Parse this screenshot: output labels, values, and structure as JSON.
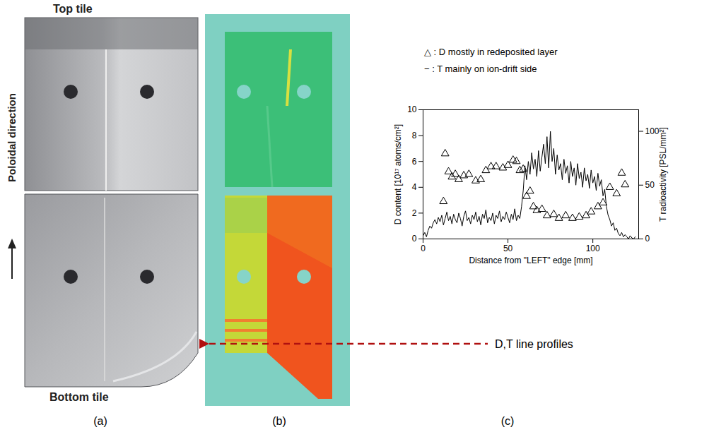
{
  "figure": {
    "panels": {
      "a": {
        "label": "(a)",
        "top_title": "Top tile",
        "bottom_title": "Bottom tile",
        "axis_label": "Poloidal direction"
      },
      "b": {
        "label": "(b)"
      },
      "c": {
        "label": "(c)"
      }
    },
    "annotation": "D,T line profiles"
  },
  "chart_data": {
    "type": "line",
    "xlabel": "Distance from \"LEFT\" edge [mm]",
    "ylabel": "D content [10¹⁷ atoms/cm²]",
    "y2label": "T radioactivity [PSL/mm²]",
    "annotations": [
      "△ : D   mostly in redeposited layer",
      "− : T  mainly on ion-drift side"
    ],
    "xlim": [
      0,
      127
    ],
    "xticks": [
      0,
      50,
      100
    ],
    "ylim": [
      0,
      10
    ],
    "yticks": [
      0,
      2,
      4,
      6,
      8,
      10
    ],
    "y2lim": [
      0,
      120
    ],
    "y2ticks": [
      0,
      50,
      100
    ],
    "grid": false,
    "series": [
      {
        "name": "D",
        "type": "scatter",
        "marker": "triangle",
        "color": "#000000",
        "x": [
          12,
          13,
          15,
          17,
          19,
          21,
          24,
          27,
          31,
          34,
          37,
          40,
          43,
          47,
          50,
          53,
          55,
          57,
          59,
          61,
          63,
          65,
          67,
          70,
          73,
          77,
          80,
          84,
          88,
          92,
          96,
          99,
          103,
          106,
          110,
          114,
          117,
          119
        ],
        "values": [
          2.9,
          6.6,
          5.2,
          4.8,
          5.0,
          4.6,
          4.9,
          5.0,
          4.5,
          4.6,
          5.3,
          5.6,
          5.6,
          5.5,
          5.7,
          6.1,
          6.0,
          5.3,
          5.4,
          3.3,
          3.7,
          2.5,
          2.2,
          2.3,
          1.8,
          1.9,
          1.6,
          1.8,
          1.6,
          1.7,
          1.8,
          2.1,
          2.5,
          2.8,
          4.0,
          3.5,
          5.1,
          4.2
        ]
      },
      {
        "name": "T",
        "type": "line",
        "axis": "y2",
        "color": "#000000",
        "x": [
          0,
          1,
          2,
          3,
          4,
          5,
          6,
          7,
          8,
          9,
          10,
          11,
          12,
          13,
          14,
          15,
          16,
          17,
          18,
          19,
          20,
          21,
          22,
          23,
          24,
          25,
          26,
          27,
          28,
          29,
          30,
          31,
          32,
          33,
          34,
          35,
          36,
          37,
          38,
          39,
          40,
          41,
          42,
          43,
          44,
          45,
          46,
          47,
          48,
          49,
          50,
          51,
          52,
          53,
          54,
          55,
          56,
          57,
          58,
          59,
          60,
          61,
          62,
          63,
          64,
          65,
          66,
          67,
          68,
          69,
          70,
          71,
          72,
          73,
          74,
          75,
          76,
          77,
          78,
          79,
          80,
          81,
          82,
          83,
          84,
          85,
          86,
          87,
          88,
          89,
          90,
          91,
          92,
          93,
          94,
          95,
          96,
          97,
          98,
          99,
          100,
          101,
          102,
          103,
          104,
          105,
          106,
          107,
          108,
          109,
          110,
          111,
          112,
          113,
          114,
          115,
          116,
          117,
          118,
          119,
          120,
          121,
          122,
          123,
          124,
          125
        ],
        "values": [
          3,
          6,
          2,
          8,
          12,
          10,
          15,
          18,
          14,
          20,
          16,
          22,
          13,
          19,
          25,
          17,
          21,
          14,
          23,
          18,
          15,
          24,
          19,
          12,
          21,
          26,
          17,
          20,
          14,
          22,
          18,
          25,
          16,
          21,
          13,
          23,
          19,
          27,
          15,
          20,
          17,
          24,
          14,
          22,
          19,
          26,
          16,
          21,
          18,
          25,
          20,
          15,
          23,
          18,
          28,
          17,
          22,
          19,
          30,
          45,
          68,
          55,
          72,
          60,
          80,
          65,
          74,
          58,
          82,
          63,
          76,
          88,
          70,
          95,
          66,
          100,
          72,
          84,
          60,
          78,
          64,
          70,
          55,
          74,
          61,
          68,
          52,
          72,
          58,
          66,
          50,
          70,
          56,
          62,
          48,
          66,
          54,
          60,
          47,
          64,
          52,
          58,
          45,
          61,
          49,
          55,
          40,
          46,
          30,
          22,
          18,
          12,
          15,
          8,
          10,
          5,
          3,
          6,
          2,
          4,
          2,
          0,
          3,
          1,
          0,
          2
        ]
      }
    ]
  }
}
